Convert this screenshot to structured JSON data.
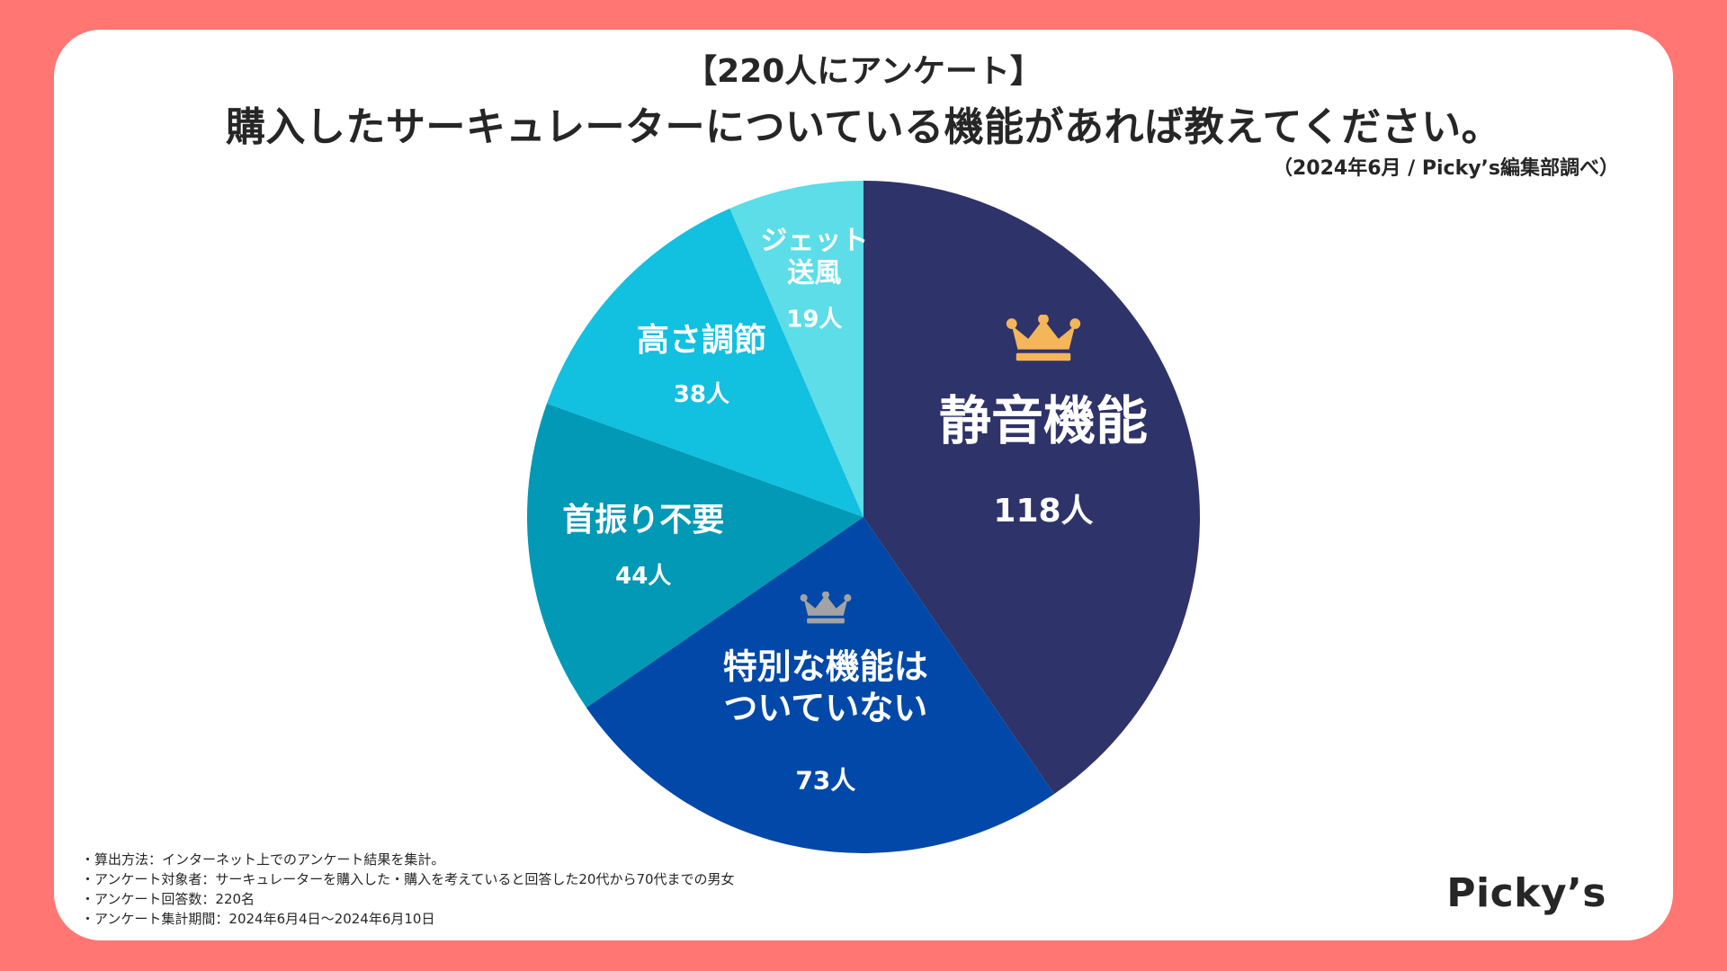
{
  "header": {
    "subtitle": "【220人にアンケート】",
    "title": "購入したサーキュレーターについている機能があれば教えてください。",
    "source": "（2024年6月 / Picky’s編集部調べ）"
  },
  "chart_data": {
    "type": "pie",
    "total": 220,
    "unit": "人",
    "start": "12 o'clock",
    "direction": "clockwise",
    "slices": [
      {
        "label": "静音機能",
        "value": 118,
        "value_label": "118人",
        "color": "#2E336A",
        "crown": "gold"
      },
      {
        "label": "特別な機能は\nついていない",
        "value": 73,
        "value_label": "73人",
        "color": "#0248A8",
        "crown": "silver"
      },
      {
        "label": "首振り不要",
        "value": 44,
        "value_label": "44人",
        "color": "#0199B5",
        "crown": ""
      },
      {
        "label": "高さ調節",
        "value": 38,
        "value_label": "38人",
        "color": "#12C0E0",
        "crown": ""
      },
      {
        "label": "ジェット\n送風",
        "value": 19,
        "value_label": "19人",
        "color": "#5CDDE7",
        "crown": ""
      }
    ]
  },
  "colors": {
    "background": "#FF7672",
    "card": "#FFFFFF",
    "crown_gold": "#F5B65A",
    "crown_silver": "#A3A3A3"
  },
  "footer": {
    "notes": [
      "・算出方法：インターネット上でのアンケート結果を集計。",
      "・アンケート対象者：サーキュレーターを購入した・購入を考えていると回答した20代から70代までの男女",
      "・アンケート回答数：220名",
      "・アンケート集計期間：2024年6月4日〜2024年6月10日"
    ],
    "logo": "Picky’s"
  }
}
